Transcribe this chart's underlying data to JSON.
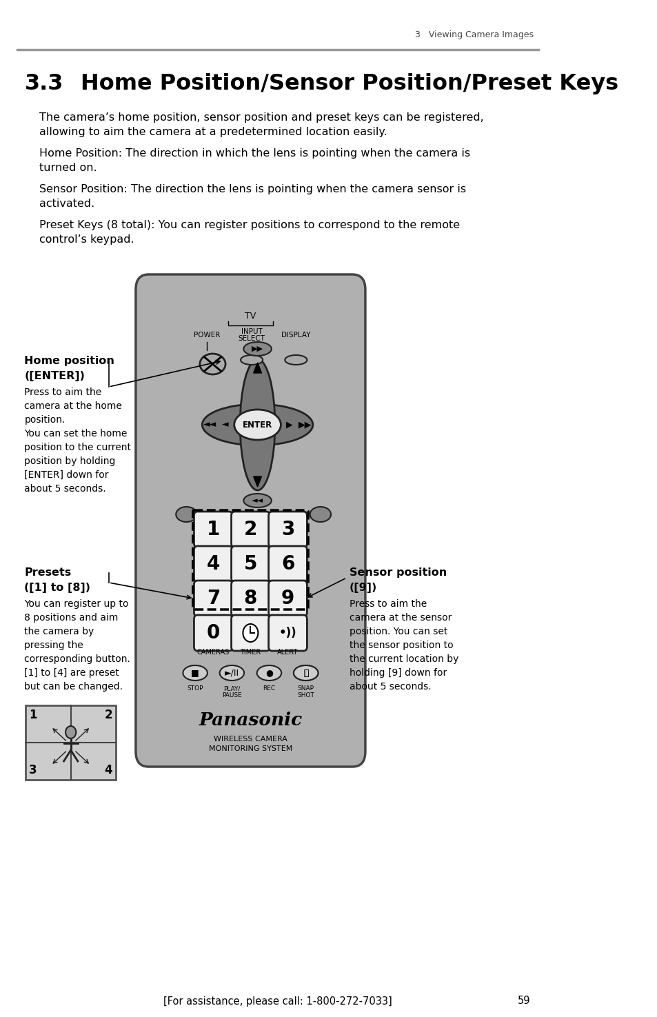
{
  "page_number": "59",
  "header_text": "3   Viewing Camera Images",
  "section_number": "3.3",
  "section_title": "Home Position/Sensor Position/Preset Keys",
  "para1": "The camera’s home position, sensor position and preset keys can be registered,\nallowing to aim the camera at a predetermined location easily.",
  "para2": "Home Position: The direction in which the lens is pointing when the camera is\nturned on.",
  "para3": "Sensor Position: The direction the lens is pointing when the camera sensor is\nactivated.",
  "para4": "Preset Keys (8 total): You can register positions to correspond to the remote\ncontrol’s keypad.",
  "hp_bold1": "Home position",
  "hp_bold2": "([ENTER])",
  "hp_text": "Press to aim the\ncamera at the home\nposition.\nYou can set the home\nposition to the current\nposition by holding\n[ENTER] down for\nabout 5 seconds.",
  "pr_bold1": "Presets",
  "pr_bold2": "([1] to [8])",
  "pr_text": "You can register up to\n8 positions and aim\nthe camera by\npressing the\ncorresponding button.\n[1] to [4] are preset\nbut can be changed.",
  "sp_bold1": "Sensor position",
  "sp_bold2": "([9])",
  "sp_text": "Press to aim the\ncamera at the sensor\nposition. You can set\nthe sensor position to\nthe current location by\nholding [9] down for\nabout 5 seconds.",
  "footer_text": "[For assistance, please call: 1-800-272-7033]",
  "bg_color": "#ffffff",
  "remote_fill": "#b0b0b0",
  "remote_edge": "#444444",
  "btn_fill": "#f0f0f0",
  "btn_edge": "#222222",
  "dpad_fill": "#888888",
  "enter_fill": "#e8e8e8"
}
